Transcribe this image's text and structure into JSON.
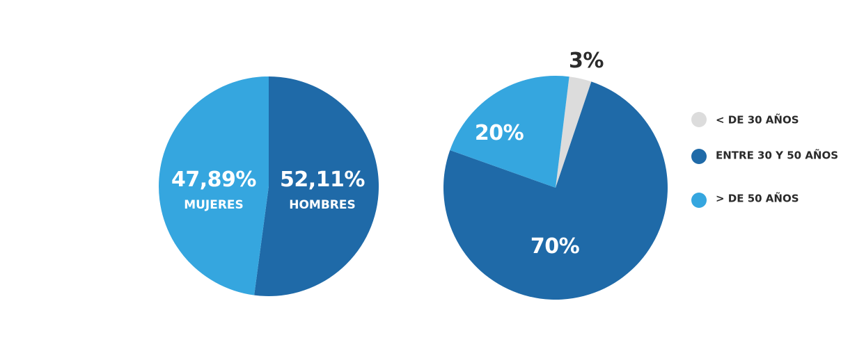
{
  "chart_data": [
    {
      "type": "pie",
      "slices": [
        {
          "label": "HOMBRES",
          "value": 52.11,
          "value_label": "52,11%",
          "color": "#1f6aa8"
        },
        {
          "label": "MUJERES",
          "value": 47.89,
          "value_label": "47,89%",
          "color": "#35a6df"
        }
      ]
    },
    {
      "type": "pie",
      "slices": [
        {
          "label": "< DE 30 AÑOS",
          "value": 3,
          "value_label": "3%",
          "color": "#dcdcdc"
        },
        {
          "label": "ENTRE 30 Y 50 AÑOS",
          "value": 70,
          "value_label": "70%",
          "color": "#1f6aa8"
        },
        {
          "label": "> DE 50 AÑOS",
          "value": 20,
          "value_label": "20%",
          "color": "#35a6df"
        }
      ],
      "legend": {
        "placement": "right",
        "items": [
          {
            "label": "< DE 30 AÑOS",
            "color": "#dcdcdc"
          },
          {
            "label": "ENTRE 30 Y 50 AÑOS",
            "color": "#1f6aa8"
          },
          {
            "label": "> DE 50 AÑOS",
            "color": "#35a6df"
          }
        ]
      }
    }
  ]
}
